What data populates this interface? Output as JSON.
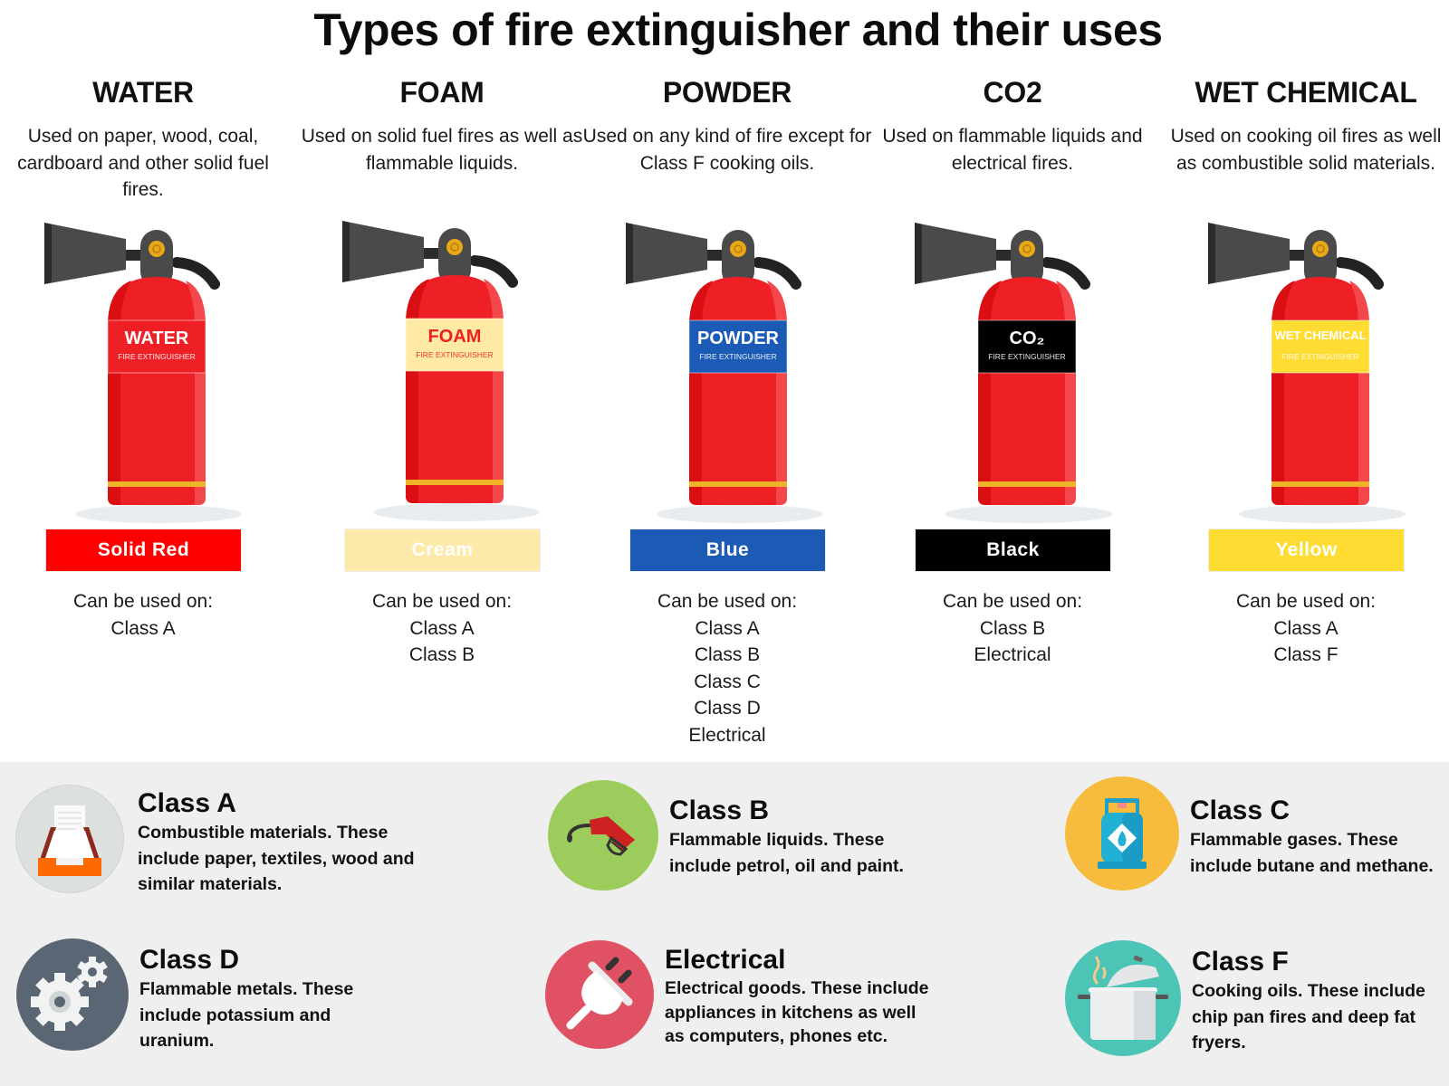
{
  "title": "Types of  fire extinguisher and their uses",
  "extinguishers": [
    {
      "name": "WATER",
      "description": "Used on paper, wood, coal, cardboard and other solid fuel fires.",
      "label_title": "WATER",
      "label_sub": "FIRE EXTINGUISHER",
      "label_bg": "#ee1f25",
      "label_fg": "#ffffff",
      "color_name": "Solid Red",
      "color_hex": "#ff0000",
      "color_text": "#ffffff",
      "uses_heading": "Can be used on:",
      "uses": [
        "Class A"
      ]
    },
    {
      "name": "FOAM",
      "description": "Used on solid fuel fires as well as flammable liquids.",
      "label_title": "FOAM",
      "label_sub": "FIRE EXTINGUISHER",
      "label_bg": "#ffeaa5",
      "label_fg": "#ee1f25",
      "color_name": "Cream",
      "color_hex": "#fdeaa8",
      "color_text": "#ffffff",
      "uses_heading": "Can be used on:",
      "uses": [
        "Class A",
        "Class B"
      ]
    },
    {
      "name": "POWDER",
      "description": "Used on any kind of fire except for Class F cooking oils.",
      "label_title": "POWDER",
      "label_sub": "FIRE EXTINGUISHER",
      "label_bg": "#1c5bb5",
      "label_fg": "#ffffff",
      "color_name": "Blue",
      "color_hex": "#1c5bb5",
      "color_text": "#ffffff",
      "uses_heading": "Can be used on:",
      "uses": [
        "Class A",
        "Class B",
        "Class C",
        "Class D",
        "Electrical"
      ]
    },
    {
      "name": "CO2",
      "description": "Used on flammable liquids and electrical fires.",
      "label_title": "CO₂",
      "label_sub": "FIRE EXTINGUISHER",
      "label_bg": "#000000",
      "label_fg": "#ffffff",
      "color_name": "Black",
      "color_hex": "#000000",
      "color_text": "#ffffff",
      "uses_heading": "Can be used on:",
      "uses": [
        "Class B",
        "Electrical"
      ]
    },
    {
      "name": "WET CHEMICAL",
      "description": "Used on cooking oil fires as well as combustible solid materials.",
      "label_title": "WET CHEMICAL",
      "label_sub": "FIRE EXTINGUISHER",
      "label_bg": "#fedc32",
      "label_fg": "#ffffff",
      "color_name": "Yellow",
      "color_hex": "#fedc32",
      "color_text": "#ffffff",
      "uses_heading": "Can be used on:",
      "uses": [
        "Class A",
        "Class F"
      ]
    }
  ],
  "fire_classes": [
    {
      "name": "Class A",
      "description": "Combustible materials. These include paper, textiles, wood and similar materials.",
      "icon": "paper-tray-icon",
      "icon_bg": "#dde1dd"
    },
    {
      "name": "Class B",
      "description": "Flammable liquids. These include petrol, oil and paint.",
      "icon": "fuel-nozzle-icon",
      "icon_bg": "#9ccc5c"
    },
    {
      "name": "Class C",
      "description": "Flammable gases. These include butane and methane.",
      "icon": "gas-cylinder-icon",
      "icon_bg": "#f7bb3d"
    },
    {
      "name": "Class D",
      "description": "Flammable metals. These include potassium and uranium.",
      "icon": "gears-icon",
      "icon_bg": "#5b6674"
    },
    {
      "name": "Electrical",
      "description": "Electrical goods. These include appliances in kitchens as well as computers, phones etc.",
      "icon": "plug-icon",
      "icon_bg": "#e05263"
    },
    {
      "name": "Class F",
      "description": "Cooking oils. These include chip pan fires and deep fat fryers.",
      "icon": "cooking-pot-icon",
      "icon_bg": "#4cc4b6"
    }
  ],
  "colors": {
    "cylinder_red": "#ee1f25",
    "cylinder_dark": "#d90f14",
    "cylinder_light": "#f3474b",
    "band": "#f0b429",
    "nozzle": "#4a4a4a",
    "legend_bg": "#efefef"
  }
}
